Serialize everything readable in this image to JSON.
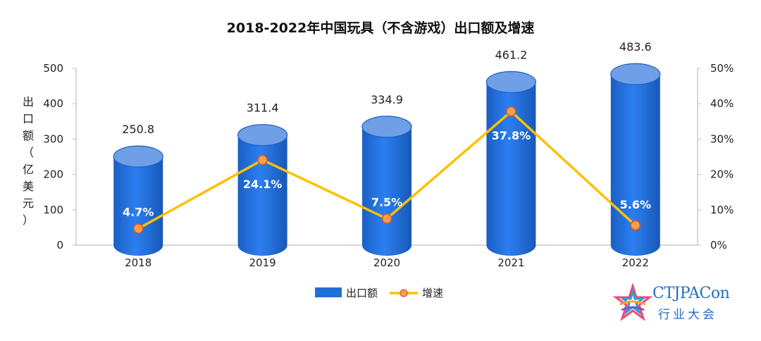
{
  "chart_data": {
    "type": "bar+line",
    "title": "2018-2022年中国玩具（不含游戏）出口额及增速",
    "categories": [
      "2018",
      "2019",
      "2020",
      "2021",
      "2022"
    ],
    "series": [
      {
        "name": "出口额",
        "type": "bar",
        "axis": "left",
        "values": [
          250.8,
          311.4,
          334.9,
          461.2,
          483.6
        ],
        "labels": [
          "250.8",
          "311.4",
          "334.9",
          "461.2",
          "483.6"
        ],
        "color": "#1f6fd9"
      },
      {
        "name": "增速",
        "type": "line",
        "axis": "right",
        "values": [
          4.7,
          24.1,
          7.5,
          37.8,
          5.6
        ],
        "labels": [
          "4.7%",
          "24.1%",
          "7.5%",
          "37.8%",
          "5.6%"
        ],
        "color": "#ffc000"
      }
    ],
    "ylabel": "出口额（亿美元）",
    "ylim": [
      0,
      500
    ],
    "yticks": [
      "0",
      "100",
      "200",
      "300",
      "400",
      "500"
    ],
    "y2lim": [
      0,
      50
    ],
    "y2ticks": [
      "0%",
      "10%",
      "20%",
      "30%",
      "40%",
      "50%"
    ],
    "legend": [
      "出口额",
      "增速"
    ],
    "legend_position": "bottom-center"
  },
  "logo": {
    "name": "CTJPACon",
    "subtitle": "行业大会"
  }
}
